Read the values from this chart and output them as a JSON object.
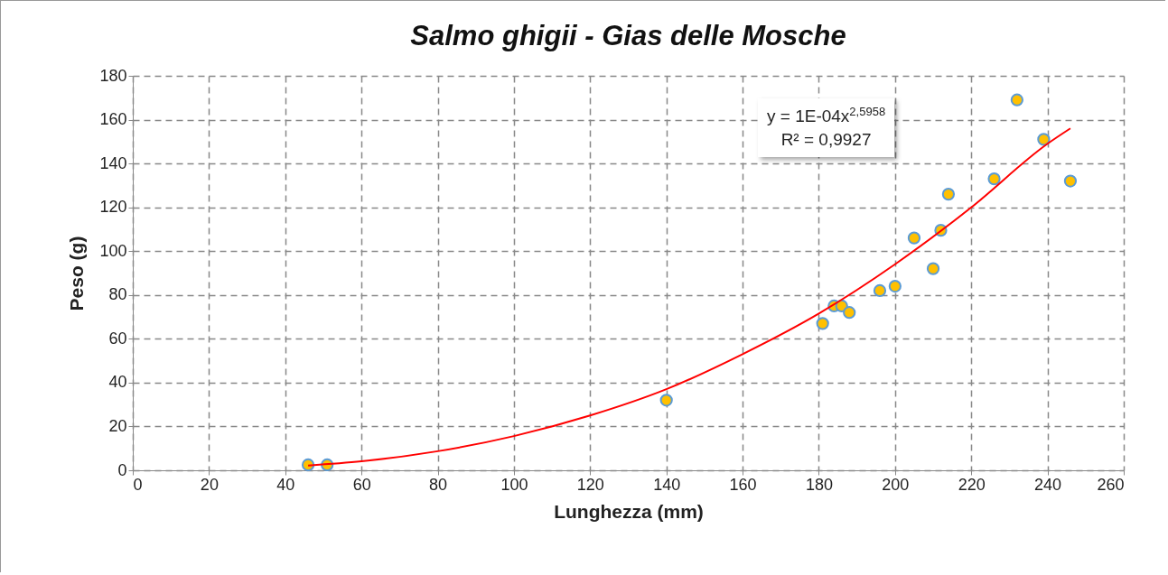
{
  "chart_data": {
    "type": "scatter",
    "title": "Salmo ghigii  - Gias delle Mosche",
    "xlabel": "Lunghezza (mm)",
    "ylabel": "Peso (g)",
    "x": [
      46,
      51,
      140,
      181,
      184,
      186,
      188,
      196,
      200,
      205,
      210,
      212,
      214,
      226,
      232,
      239,
      246
    ],
    "series": [
      {
        "color": "#ffc000",
        "values": [
          2.5,
          2.5,
          32,
          67,
          75,
          75,
          72,
          82,
          84,
          106,
          92,
          109.5,
          126,
          133,
          169,
          151,
          132
        ]
      },
      {
        "type": "line",
        "marker": "none",
        "color": "#ff0000",
        "x": [
          46,
          60,
          80,
          100,
          120,
          140,
          160,
          180,
          200,
          220,
          240,
          246
        ],
        "values": [
          2.2,
          4.1,
          8.7,
          15.6,
          25,
          37,
          53,
          71.5,
          94,
          120,
          149,
          156
        ]
      }
    ],
    "annotations": [
      "y = 1E-04x$^{2,5958}$",
      "R² = 0,9927"
    ],
    "xlim": [
      0,
      260
    ],
    "xticks": [
      0,
      20,
      40,
      60,
      80,
      100,
      120,
      140,
      160,
      180,
      200,
      220,
      240,
      260
    ],
    "ylim": [
      0,
      180
    ],
    "yticks": [
      0,
      20,
      40,
      60,
      80,
      100,
      120,
      140,
      160,
      180
    ],
    "grid": true,
    "marker": "circle",
    "line_style": "solid"
  }
}
